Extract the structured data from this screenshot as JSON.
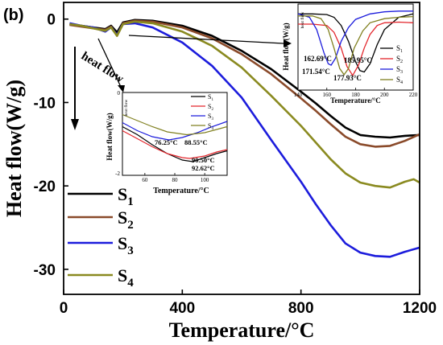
{
  "panel_label": "(b)",
  "colors": {
    "S1": "#000000",
    "S2": "#e3262c",
    "S3": "#1c1cdc",
    "S4": "#808020",
    "S2_main": "#8a4a2a",
    "S4_main": "#8a8a20"
  },
  "annotations": {
    "heat_flow_arrow": "heat flow"
  },
  "chart_data": [
    {
      "id": "main",
      "type": "line",
      "title": "",
      "xlabel": "Temperature/°C",
      "ylabel": "Heat flow(W/g)",
      "xlim": [
        0,
        1200
      ],
      "ylim": [
        -33,
        2
      ],
      "xticks": [
        0,
        400,
        800,
        1200
      ],
      "yticks": [
        0,
        -10,
        -20,
        -30
      ],
      "legend": {
        "placement": "bottom-left",
        "entries": [
          {
            "main": "S",
            "sub": "1"
          },
          {
            "main": "S",
            "sub": "2"
          },
          {
            "main": "S",
            "sub": "3"
          },
          {
            "main": "S",
            "sub": "4"
          }
        ]
      },
      "series": [
        {
          "name": "S1",
          "x": [
            20,
            60,
            100,
            140,
            160,
            180,
            200,
            240,
            300,
            400,
            500,
            600,
            700,
            800,
            850,
            900,
            950,
            1000,
            1050,
            1100,
            1150,
            1200
          ],
          "y": [
            -0.6,
            -0.8,
            -1.0,
            -1.2,
            -0.8,
            -1.6,
            -0.4,
            -0.1,
            -0.2,
            -0.8,
            -2.0,
            -3.8,
            -6.0,
            -8.7,
            -10.1,
            -11.6,
            -13.0,
            -13.9,
            -14.1,
            -14.2,
            -14.0,
            -13.9
          ]
        },
        {
          "name": "S2",
          "x": [
            20,
            60,
            100,
            140,
            160,
            180,
            200,
            240,
            300,
            400,
            500,
            600,
            700,
            800,
            850,
            900,
            950,
            1000,
            1050,
            1100,
            1150,
            1200
          ],
          "y": [
            -0.7,
            -0.9,
            -1.1,
            -1.3,
            -0.9,
            -2.0,
            -0.5,
            -0.2,
            -0.3,
            -1.0,
            -2.3,
            -4.2,
            -6.6,
            -9.5,
            -11.0,
            -12.6,
            -14.1,
            -15.0,
            -15.3,
            -15.2,
            -14.6,
            -13.8
          ]
        },
        {
          "name": "S3",
          "x": [
            20,
            60,
            100,
            140,
            160,
            180,
            200,
            240,
            300,
            400,
            500,
            600,
            700,
            800,
            850,
            900,
            950,
            1000,
            1050,
            1100,
            1150,
            1200
          ],
          "y": [
            -0.5,
            -0.8,
            -1.0,
            -1.5,
            -1.0,
            -1.9,
            -0.6,
            -0.5,
            -1.0,
            -2.8,
            -5.6,
            -9.4,
            -14.5,
            -19.5,
            -22.2,
            -24.7,
            -26.9,
            -28.0,
            -28.4,
            -28.5,
            -27.9,
            -27.4
          ]
        },
        {
          "name": "S4",
          "x": [
            20,
            60,
            100,
            140,
            160,
            180,
            200,
            240,
            300,
            400,
            500,
            600,
            700,
            800,
            850,
            900,
            950,
            1000,
            1050,
            1100,
            1150,
            1180,
            1200
          ],
          "y": [
            -0.6,
            -0.8,
            -1.1,
            -1.4,
            -1.0,
            -2.0,
            -0.6,
            -0.3,
            -0.5,
            -1.5,
            -3.2,
            -5.8,
            -9.2,
            -12.8,
            -14.8,
            -16.8,
            -18.5,
            -19.6,
            -20.0,
            -20.2,
            -19.5,
            -19.2,
            -19.6
          ]
        }
      ]
    },
    {
      "id": "inset_right",
      "type": "line",
      "xlabel": "Temperature/°C",
      "ylabel": "Heat flow(W/g)",
      "xlim": [
        140,
        220
      ],
      "xticks": [
        140,
        160,
        180,
        200,
        220
      ],
      "ylim": [
        -1,
        0
      ],
      "y_axis_label_inner": "heat flow",
      "legend": {
        "placement": "right",
        "entries": [
          {
            "main": "S",
            "sub": "1"
          },
          {
            "main": "S",
            "sub": "2"
          },
          {
            "main": "S",
            "sub": "3"
          },
          {
            "main": "S",
            "sub": "4"
          }
        ]
      },
      "annotations": [
        "162.69°C",
        "171.54°C",
        "177.93°C",
        "185.95°C"
      ],
      "series": [
        {
          "name": "S1",
          "x": [
            140,
            150,
            160,
            165,
            170,
            175,
            180,
            183,
            186,
            190,
            195,
            200,
            210,
            220
          ],
          "y": [
            -0.05,
            -0.05,
            -0.06,
            -0.1,
            -0.22,
            -0.45,
            -0.75,
            -0.88,
            -0.9,
            -0.78,
            -0.5,
            -0.28,
            -0.1,
            -0.05
          ]
        },
        {
          "name": "S2",
          "x": [
            140,
            150,
            160,
            165,
            170,
            174,
            178,
            182,
            186,
            190,
            195,
            200,
            210,
            220
          ],
          "y": [
            -0.2,
            -0.2,
            -0.22,
            -0.32,
            -0.55,
            -0.82,
            -0.95,
            -0.8,
            -0.55,
            -0.35,
            -0.22,
            -0.18,
            -0.17,
            -0.18
          ]
        },
        {
          "name": "S3",
          "x": [
            140,
            148,
            153,
            158,
            161,
            163,
            166,
            170,
            175,
            180,
            190,
            200,
            210,
            220
          ],
          "y": [
            -0.05,
            -0.1,
            -0.28,
            -0.62,
            -0.78,
            -0.8,
            -0.7,
            -0.45,
            -0.25,
            -0.13,
            -0.05,
            -0.02,
            -0.01,
            -0.01
          ]
        },
        {
          "name": "S4",
          "x": [
            140,
            150,
            156,
            161,
            165,
            169,
            172,
            175,
            179,
            185,
            190,
            200,
            210,
            220
          ],
          "y": [
            -0.08,
            -0.08,
            -0.12,
            -0.28,
            -0.55,
            -0.85,
            -0.94,
            -0.85,
            -0.55,
            -0.3,
            -0.18,
            -0.12,
            -0.1,
            -0.09
          ]
        }
      ]
    },
    {
      "id": "inset_left",
      "type": "line",
      "xlabel": "Temperature/°C",
      "ylabel": "Heat flow(W/g)",
      "xlim": [
        45,
        115
      ],
      "xticks": [
        60,
        80,
        100
      ],
      "ylim": [
        -2,
        0
      ],
      "yticks": [
        -2,
        0
      ],
      "y_axis_label_inner": "heat flow",
      "legend": {
        "placement": "top-right",
        "entries": [
          {
            "main": "S",
            "sub": "1"
          },
          {
            "main": "S",
            "sub": "2"
          },
          {
            "main": "S",
            "sub": "3"
          },
          {
            "main": "S",
            "sub": "4"
          }
        ]
      },
      "annotations": [
        "76.25°C",
        "88.55°C",
        "90.50°C",
        "92.62°C"
      ],
      "series": [
        {
          "name": "S1",
          "x": [
            45,
            55,
            65,
            75,
            85,
            92,
            100,
            108,
            115
          ],
          "y": [
            -0.85,
            -1.05,
            -1.3,
            -1.52,
            -1.68,
            -1.72,
            -1.62,
            -1.52,
            -1.45
          ]
        },
        {
          "name": "S2",
          "x": [
            45,
            55,
            65,
            75,
            85,
            90,
            100,
            108,
            115
          ],
          "y": [
            -0.95,
            -1.15,
            -1.35,
            -1.52,
            -1.62,
            -1.64,
            -1.58,
            -1.48,
            -1.42
          ]
        },
        {
          "name": "S3",
          "x": [
            45,
            55,
            65,
            76,
            85,
            95,
            105,
            115
          ],
          "y": [
            -0.75,
            -0.95,
            -1.1,
            -1.18,
            -1.12,
            -1.0,
            -0.85,
            -0.72
          ]
        },
        {
          "name": "S4",
          "x": [
            45,
            55,
            65,
            75,
            88,
            100,
            108,
            115
          ],
          "y": [
            -0.55,
            -0.7,
            -0.85,
            -0.98,
            -1.05,
            -1.0,
            -0.92,
            -0.85
          ]
        }
      ]
    }
  ]
}
